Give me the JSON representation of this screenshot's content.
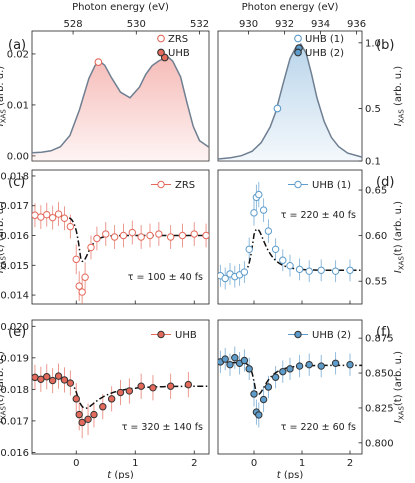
{
  "chart_data": [
    {
      "id": "a",
      "panel_letter": "(a)",
      "type": "area",
      "top_axis_title": "Photon energy (eV)",
      "top_ticks": [
        "528",
        "530",
        "532"
      ],
      "top_tick_values": [
        528,
        530,
        532
      ],
      "xlim": [
        526.7,
        532.3
      ],
      "ylabel": "I_XAS (arb. u.)",
      "yticks": [
        "0.00",
        "0.01",
        "0.02"
      ],
      "ytick_values": [
        0.0,
        0.01,
        0.02
      ],
      "ylim": [
        -0.001,
        0.0245
      ],
      "fill_color": "#f5b8b4",
      "line_color": "#6f7f92",
      "spectrum": {
        "x": [
          526.7,
          527.0,
          527.3,
          527.6,
          527.9,
          528.2,
          528.5,
          528.7,
          528.85,
          529.0,
          529.2,
          529.5,
          529.8,
          530.1,
          530.3,
          530.5,
          530.7,
          530.9,
          531.0,
          531.15,
          531.4,
          531.6,
          531.8,
          532.0,
          532.3
        ],
        "y": [
          0.0006,
          0.0007,
          0.001,
          0.0018,
          0.004,
          0.009,
          0.0152,
          0.0178,
          0.0185,
          0.0178,
          0.0155,
          0.0125,
          0.0114,
          0.0135,
          0.016,
          0.0177,
          0.0186,
          0.0192,
          0.0194,
          0.0186,
          0.0155,
          0.0105,
          0.0058,
          0.003,
          0.0017
        ]
      },
      "markers": [
        {
          "label": "ZRS",
          "x": 528.8,
          "y": 0.0184,
          "filled": false,
          "color": "#e46a5c"
        },
        {
          "label": "UHB",
          "x": 530.9,
          "y": 0.0193,
          "filled": true,
          "color": "#e46a5c"
        }
      ],
      "legend": [
        {
          "label": "ZRS",
          "filled": false,
          "color": "#e46a5c"
        },
        {
          "label": "UHB",
          "filled": true,
          "color": "#e46a5c"
        }
      ]
    },
    {
      "id": "b",
      "panel_letter": "(b)",
      "type": "area",
      "top_axis_title": "Photon energy (eV)",
      "top_ticks": [
        "930",
        "932",
        "934",
        "936"
      ],
      "top_tick_values": [
        930,
        932,
        934,
        936
      ],
      "xlim": [
        928.3,
        936.3
      ],
      "ylabel": "I_XAS (arb. u.)",
      "yticks": [
        "0.1",
        "0.5",
        "1.0"
      ],
      "ytick_values": [
        0.1,
        0.5,
        1.0
      ],
      "ylim": [
        0.1,
        1.09
      ],
      "fill_color": "#b6d3ea",
      "line_color": "#6f7f92",
      "spectrum": {
        "x": [
          928.3,
          929.0,
          929.6,
          930.2,
          930.7,
          931.2,
          931.5,
          931.9,
          932.3,
          932.6,
          932.9,
          933.2,
          933.5,
          933.8,
          934.2,
          934.6,
          935.0,
          935.5,
          936.3
        ],
        "y": [
          0.115,
          0.125,
          0.14,
          0.175,
          0.24,
          0.36,
          0.47,
          0.68,
          0.88,
          0.96,
          0.99,
          0.92,
          0.76,
          0.58,
          0.4,
          0.28,
          0.21,
          0.16,
          0.13
        ]
      },
      "markers": [
        {
          "label": "UHB (1)",
          "x": 931.6,
          "y": 0.5,
          "filled": false,
          "color": "#5d9ccb"
        },
        {
          "label": "UHB (2)",
          "x": 932.8,
          "y": 0.96,
          "filled": true,
          "color": "#5d9ccb"
        }
      ],
      "legend": [
        {
          "label": "UHB (1)",
          "filled": false,
          "color": "#5d9ccb"
        },
        {
          "label": "UHB (2)",
          "filled": true,
          "color": "#5d9ccb"
        }
      ]
    },
    {
      "id": "c",
      "panel_letter": "(c)",
      "type": "scatter",
      "ylabel": "I_XAS(t) (arb. u.)",
      "yticks": [
        "0.014",
        "0.015",
        "0.016",
        "0.017",
        "0.018"
      ],
      "ytick_values": [
        0.014,
        0.015,
        0.016,
        0.017,
        0.018
      ],
      "ylim": [
        0.0137,
        0.0182
      ],
      "xlim": [
        -0.75,
        2.25
      ],
      "xticks": [
        "-1",
        "0",
        "1",
        "2"
      ],
      "xtick_values": [
        -1,
        0,
        1,
        2
      ],
      "color": "#e46a5c",
      "filled": false,
      "legend_label": "ZRS",
      "annotation": "τ = 100 ± 40 fs",
      "fit": {
        "baseline": 0.01665,
        "offset": 0.016,
        "amp": 0.0023,
        "t0": 0.08,
        "rise": 0.05,
        "tau": 0.1
      },
      "points": [
        {
          "t": -0.7,
          "y": 0.01668,
          "err": 0.0004
        },
        {
          "t": -0.6,
          "y": 0.01662,
          "err": 0.0004
        },
        {
          "t": -0.5,
          "y": 0.0167,
          "err": 0.0004
        },
        {
          "t": -0.4,
          "y": 0.0166,
          "err": 0.0004
        },
        {
          "t": -0.3,
          "y": 0.01672,
          "err": 0.0004
        },
        {
          "t": -0.2,
          "y": 0.01658,
          "err": 0.0004
        },
        {
          "t": -0.1,
          "y": 0.0163,
          "err": 0.0004
        },
        {
          "t": 0.0,
          "y": 0.0152,
          "err": 0.0005
        },
        {
          "t": 0.05,
          "y": 0.0143,
          "err": 0.0005
        },
        {
          "t": 0.1,
          "y": 0.0141,
          "err": 0.0005
        },
        {
          "t": 0.15,
          "y": 0.0146,
          "err": 0.0005
        },
        {
          "t": 0.25,
          "y": 0.0156,
          "err": 0.0004
        },
        {
          "t": 0.35,
          "y": 0.0159,
          "err": 0.0004
        },
        {
          "t": 0.5,
          "y": 0.01605,
          "err": 0.0004
        },
        {
          "t": 0.65,
          "y": 0.01595,
          "err": 0.0004
        },
        {
          "t": 0.8,
          "y": 0.016,
          "err": 0.0004
        },
        {
          "t": 0.95,
          "y": 0.0161,
          "err": 0.0004
        },
        {
          "t": 1.1,
          "y": 0.01595,
          "err": 0.0004
        },
        {
          "t": 1.25,
          "y": 0.016,
          "err": 0.0004
        },
        {
          "t": 1.4,
          "y": 0.01605,
          "err": 0.0004
        },
        {
          "t": 1.6,
          "y": 0.01595,
          "err": 0.0004
        },
        {
          "t": 1.8,
          "y": 0.016,
          "err": 0.0004
        },
        {
          "t": 2.0,
          "y": 0.01605,
          "err": 0.0004
        },
        {
          "t": 2.2,
          "y": 0.016,
          "err": 0.0004
        }
      ]
    },
    {
      "id": "d",
      "panel_letter": "(d)",
      "type": "scatter",
      "ylabel": "I_XAS(t) (arb. u.)",
      "yticks": [
        "0.55",
        "0.60",
        "0.65"
      ],
      "ytick_values": [
        0.55,
        0.6,
        0.65
      ],
      "ylim": [
        0.525,
        0.672
      ],
      "xlim": [
        -0.75,
        2.25
      ],
      "xticks": [
        "-1",
        "0",
        "1",
        "2"
      ],
      "xtick_values": [
        -1,
        0,
        1,
        2
      ],
      "color": "#5d9ccb",
      "filled": false,
      "legend_label": "UHB (1)",
      "annotation": "τ = 220 ± 40 fs",
      "fit": {
        "baseline": 0.556,
        "offset": 0.562,
        "amp": -0.084,
        "t0": 0.0,
        "rise": 0.06,
        "tau": 0.22
      },
      "points": [
        {
          "t": -0.7,
          "y": 0.556,
          "err": 0.012
        },
        {
          "t": -0.6,
          "y": 0.553,
          "err": 0.012
        },
        {
          "t": -0.5,
          "y": 0.558,
          "err": 0.012
        },
        {
          "t": -0.4,
          "y": 0.555,
          "err": 0.012
        },
        {
          "t": -0.3,
          "y": 0.557,
          "err": 0.012
        },
        {
          "t": -0.2,
          "y": 0.56,
          "err": 0.012
        },
        {
          "t": -0.1,
          "y": 0.585,
          "err": 0.013
        },
        {
          "t": 0.0,
          "y": 0.625,
          "err": 0.014
        },
        {
          "t": 0.05,
          "y": 0.642,
          "err": 0.014
        },
        {
          "t": 0.1,
          "y": 0.645,
          "err": 0.014
        },
        {
          "t": 0.2,
          "y": 0.628,
          "err": 0.013
        },
        {
          "t": 0.3,
          "y": 0.605,
          "err": 0.013
        },
        {
          "t": 0.45,
          "y": 0.585,
          "err": 0.012
        },
        {
          "t": 0.6,
          "y": 0.573,
          "err": 0.012
        },
        {
          "t": 0.75,
          "y": 0.567,
          "err": 0.012
        },
        {
          "t": 0.95,
          "y": 0.563,
          "err": 0.012
        },
        {
          "t": 1.15,
          "y": 0.561,
          "err": 0.012
        },
        {
          "t": 1.4,
          "y": 0.562,
          "err": 0.012
        },
        {
          "t": 1.7,
          "y": 0.561,
          "err": 0.012
        },
        {
          "t": 2.0,
          "y": 0.562,
          "err": 0.012
        }
      ]
    },
    {
      "id": "e",
      "panel_letter": "(e)",
      "type": "scatter",
      "ylabel": "I_XAS(t) (arb. u.)",
      "yticks": [
        "0.016",
        "0.017",
        "0.018",
        "0.019",
        "0.020"
      ],
      "ytick_values": [
        0.016,
        0.017,
        0.018,
        0.019,
        0.02
      ],
      "ylim": [
        0.01595,
        0.0202
      ],
      "xlim": [
        -0.75,
        2.25
      ],
      "xticks": [
        "-1",
        "0",
        "1",
        "2"
      ],
      "xtick_values": [
        -1,
        0,
        1,
        2
      ],
      "xlabel": "t (ps)",
      "color": "#e46a5c",
      "filled": true,
      "legend_label": "UHB",
      "annotation": "τ = 320 ± 140 fs",
      "fit": {
        "baseline": 0.01835,
        "offset": 0.0181,
        "amp": 0.0012,
        "t0": 0.05,
        "rise": 0.06,
        "tau": 0.32
      },
      "points": [
        {
          "t": -0.7,
          "y": 0.01838,
          "err": 0.0004
        },
        {
          "t": -0.6,
          "y": 0.01832,
          "err": 0.0004
        },
        {
          "t": -0.5,
          "y": 0.0184,
          "err": 0.0004
        },
        {
          "t": -0.4,
          "y": 0.01828,
          "err": 0.0004
        },
        {
          "t": -0.3,
          "y": 0.01842,
          "err": 0.0004
        },
        {
          "t": -0.2,
          "y": 0.0183,
          "err": 0.0004
        },
        {
          "t": -0.1,
          "y": 0.0182,
          "err": 0.0004
        },
        {
          "t": 0.0,
          "y": 0.0177,
          "err": 0.0005
        },
        {
          "t": 0.05,
          "y": 0.0172,
          "err": 0.0005
        },
        {
          "t": 0.1,
          "y": 0.01695,
          "err": 0.0005
        },
        {
          "t": 0.2,
          "y": 0.01705,
          "err": 0.0005
        },
        {
          "t": 0.3,
          "y": 0.0172,
          "err": 0.0004
        },
        {
          "t": 0.45,
          "y": 0.01745,
          "err": 0.0004
        },
        {
          "t": 0.6,
          "y": 0.0177,
          "err": 0.0004
        },
        {
          "t": 0.75,
          "y": 0.0179,
          "err": 0.0004
        },
        {
          "t": 0.9,
          "y": 0.01795,
          "err": 0.0004
        },
        {
          "t": 1.1,
          "y": 0.0181,
          "err": 0.0004
        },
        {
          "t": 1.3,
          "y": 0.01805,
          "err": 0.0004
        },
        {
          "t": 1.6,
          "y": 0.0181,
          "err": 0.0004
        },
        {
          "t": 1.9,
          "y": 0.01815,
          "err": 0.0004
        }
      ]
    },
    {
      "id": "f",
      "panel_letter": "(f)",
      "type": "scatter",
      "ylabel": "I_XAS(t) (arb. u.)",
      "yticks": [
        "0.800",
        "0.825",
        "0.850",
        "0.875"
      ],
      "ytick_values": [
        0.8,
        0.825,
        0.85,
        0.875
      ],
      "ylim": [
        0.792,
        0.888
      ],
      "xlim": [
        -0.75,
        2.25
      ],
      "xticks": [
        "-1",
        "0",
        "1",
        "2"
      ],
      "xtick_values": [
        -1,
        0,
        1,
        2
      ],
      "xlabel": "t (ps)",
      "color": "#5d9ccb",
      "filled": true,
      "legend_label": "UHB (2)",
      "annotation": "τ = 220 ± 60 fs",
      "fit": {
        "baseline": 0.8575,
        "offset": 0.8555,
        "amp": 0.036,
        "t0": 0.03,
        "rise": 0.05,
        "tau": 0.22
      },
      "points": [
        {
          "t": -0.7,
          "y": 0.858,
          "err": 0.008
        },
        {
          "t": -0.6,
          "y": 0.86,
          "err": 0.008
        },
        {
          "t": -0.5,
          "y": 0.856,
          "err": 0.008
        },
        {
          "t": -0.4,
          "y": 0.861,
          "err": 0.008
        },
        {
          "t": -0.3,
          "y": 0.857,
          "err": 0.008
        },
        {
          "t": -0.2,
          "y": 0.859,
          "err": 0.008
        },
        {
          "t": -0.1,
          "y": 0.853,
          "err": 0.008
        },
        {
          "t": 0.0,
          "y": 0.835,
          "err": 0.009
        },
        {
          "t": 0.05,
          "y": 0.822,
          "err": 0.009
        },
        {
          "t": 0.1,
          "y": 0.82,
          "err": 0.009
        },
        {
          "t": 0.2,
          "y": 0.831,
          "err": 0.009
        },
        {
          "t": 0.3,
          "y": 0.84,
          "err": 0.008
        },
        {
          "t": 0.45,
          "y": 0.847,
          "err": 0.008
        },
        {
          "t": 0.6,
          "y": 0.851,
          "err": 0.008
        },
        {
          "t": 0.75,
          "y": 0.853,
          "err": 0.008
        },
        {
          "t": 0.95,
          "y": 0.855,
          "err": 0.008
        },
        {
          "t": 1.15,
          "y": 0.856,
          "err": 0.008
        },
        {
          "t": 1.4,
          "y": 0.855,
          "err": 0.008
        },
        {
          "t": 1.7,
          "y": 0.857,
          "err": 0.008
        },
        {
          "t": 2.0,
          "y": 0.856,
          "err": 0.008
        }
      ]
    }
  ]
}
